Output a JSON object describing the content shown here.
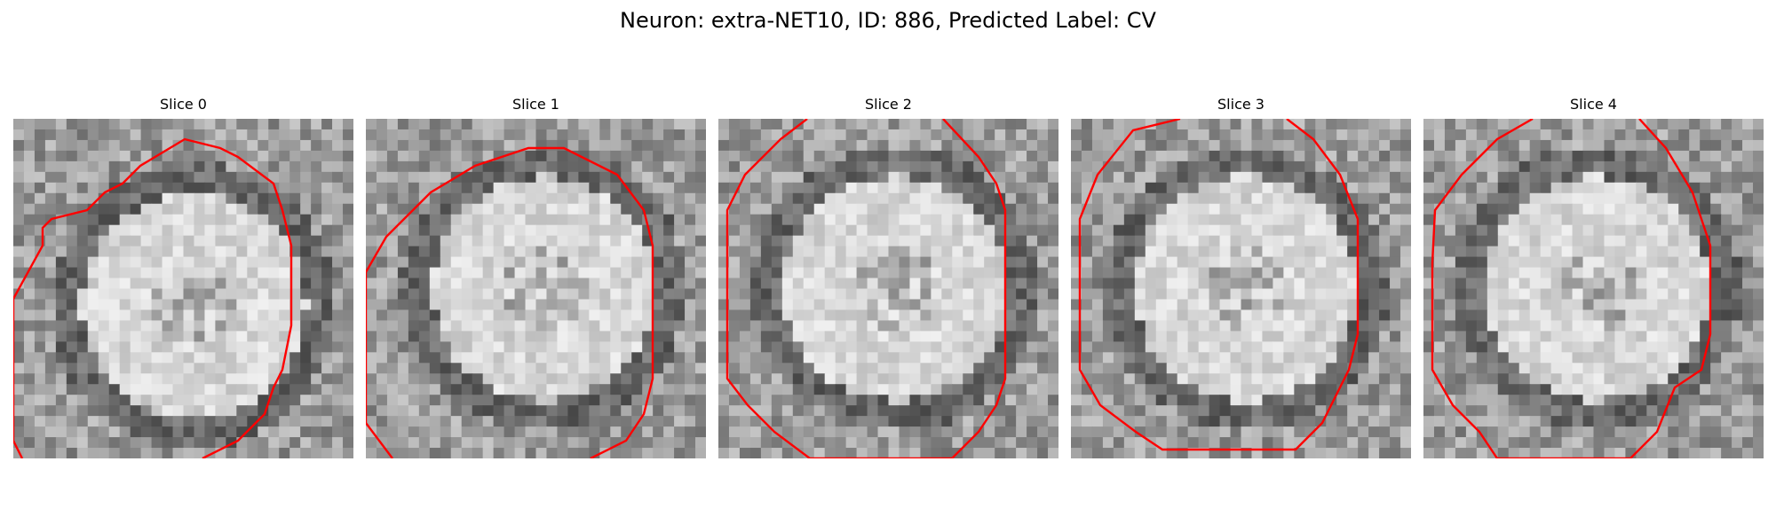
{
  "figure": {
    "title": "Neuron: extra-NET10, ID: 886, Predicted Label: CV"
  },
  "colors": {
    "contour": "#ff0000",
    "background": "#ffffff"
  },
  "panels": [
    {
      "title": "Slice 0"
    },
    {
      "title": "Slice 1"
    },
    {
      "title": "Slice 2"
    },
    {
      "title": "Slice 3"
    },
    {
      "title": "Slice 4"
    }
  ]
}
